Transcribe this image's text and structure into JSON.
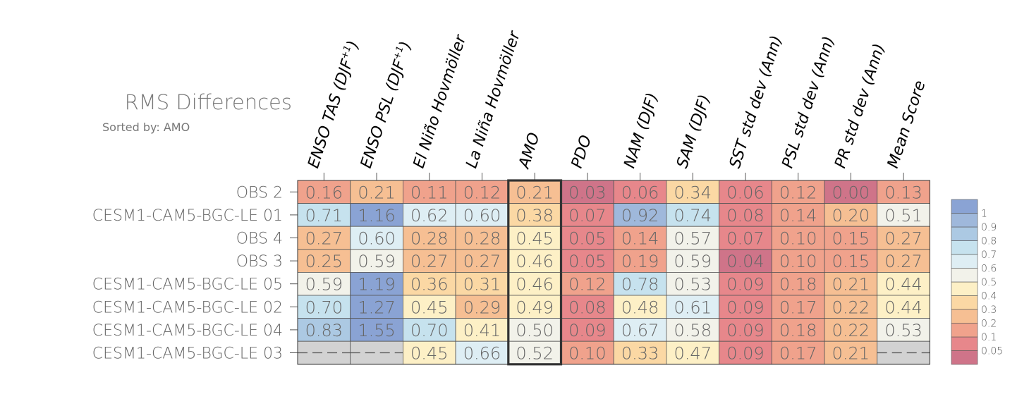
{
  "chart_data": {
    "type": "heatmap",
    "title": "RMS Differences",
    "subtitle": "Sorted by: AMO",
    "columns": [
      "ENSO TAS (DJF+1)",
      "ENSO PSL (DJF+1)",
      "El Niño Hovmöller",
      "La Niña Hovmöller",
      "AMO",
      "PDO",
      "NAM (DJF)",
      "SAM (DJF)",
      "SST std dev (Ann)",
      "PSL std dev (Ann)",
      "PR std dev (Ann)",
      "Mean Score"
    ],
    "column_labels": [
      {
        "main": "ENSO TAS (DJF",
        "sup": "+1",
        "end": ")"
      },
      {
        "main": "ENSO PSL (DJF",
        "sup": "+1",
        "end": ")"
      },
      {
        "main": "El Niño Hovmöller"
      },
      {
        "main": "La Niña Hovmöller"
      },
      {
        "main": "AMO"
      },
      {
        "main": "PDO"
      },
      {
        "main": "NAM (DJF)"
      },
      {
        "main": "SAM (DJF)"
      },
      {
        "main": "SST std dev (Ann)"
      },
      {
        "main": "PSL std dev (Ann)"
      },
      {
        "main": "PR std dev (Ann)"
      },
      {
        "main": "Mean Score"
      }
    ],
    "rows": [
      "OBS 2",
      "CESM1-CAM5-BGC-LE 01",
      "OBS 4",
      "OBS 3",
      "CESM1-CAM5-BGC-LE 05",
      "CESM1-CAM5-BGC-LE 02",
      "CESM1-CAM5-BGC-LE 04",
      "CESM1-CAM5-BGC-LE 03"
    ],
    "values": [
      [
        0.16,
        0.21,
        0.11,
        0.12,
        0.21,
        0.03,
        0.06,
        0.34,
        0.06,
        0.12,
        0.0,
        0.13
      ],
      [
        0.71,
        1.16,
        0.62,
        0.6,
        0.38,
        0.07,
        0.92,
        0.74,
        0.08,
        0.14,
        0.2,
        0.51
      ],
      [
        0.27,
        0.6,
        0.28,
        0.28,
        0.45,
        0.05,
        0.14,
        0.57,
        0.07,
        0.1,
        0.15,
        0.27
      ],
      [
        0.25,
        0.59,
        0.27,
        0.27,
        0.46,
        0.05,
        0.19,
        0.59,
        0.04,
        0.1,
        0.15,
        0.27
      ],
      [
        0.59,
        1.19,
        0.36,
        0.31,
        0.46,
        0.12,
        0.78,
        0.53,
        0.09,
        0.18,
        0.21,
        0.44
      ],
      [
        0.7,
        1.27,
        0.45,
        0.29,
        0.49,
        0.08,
        0.48,
        0.61,
        0.09,
        0.17,
        0.22,
        0.44
      ],
      [
        0.83,
        1.55,
        0.7,
        0.41,
        0.5,
        0.09,
        0.67,
        0.58,
        0.09,
        0.18,
        0.22,
        0.53
      ],
      [
        null,
        null,
        0.45,
        0.66,
        0.52,
        0.1,
        0.33,
        0.47,
        0.09,
        0.17,
        0.21,
        null
      ]
    ],
    "sorted_column": "AMO",
    "missing_color": "#d2d2d2",
    "colorbar": {
      "levels": [
        0.05,
        0.1,
        0.2,
        0.3,
        0.4,
        0.5,
        0.6,
        0.7,
        0.8,
        0.9,
        1
      ],
      "labels": [
        "1",
        "0.9",
        "0.8",
        "0.7",
        "0.6",
        "0.5",
        "0.4",
        "0.3",
        "0.2",
        "0.1",
        "0.05"
      ],
      "colors_bottom_to_top": [
        "#cf7489",
        "#e7878b",
        "#f0a28c",
        "#f6bf93",
        "#fbd8a4",
        "#fdf0c6",
        "#f2f2ea",
        "#deeef4",
        "#c6e2ee",
        "#acc9e3",
        "#9fb8db",
        "#8aa3d4"
      ]
    }
  }
}
